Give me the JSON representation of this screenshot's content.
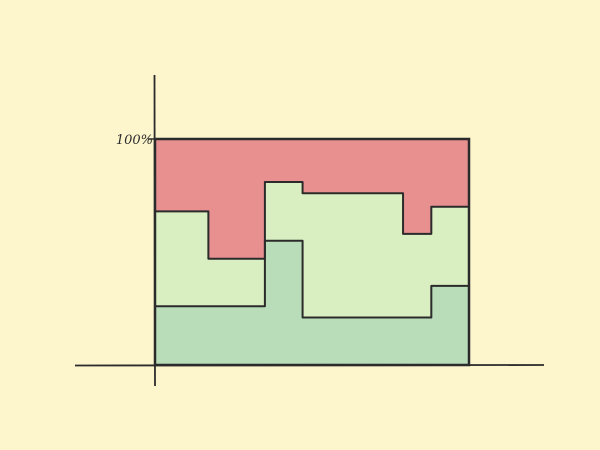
{
  "chart_data": {
    "type": "area",
    "stacked": true,
    "step": true,
    "normalized": "percent",
    "title": "",
    "xlabel": "",
    "ylabel": "",
    "y_tick_label": "100%",
    "ylim": [
      0,
      100
    ],
    "xlim": [
      0,
      100
    ],
    "grid": false,
    "legend": "none",
    "colors": {
      "background": "#fdf5cc",
      "series": [
        "#b8ddb8",
        "#d9efc2",
        "#e89090"
      ],
      "stroke": "#2b2b2b"
    },
    "x_breaks": [
      0,
      17,
      35,
      47,
      79,
      88,
      100
    ],
    "series": [
      {
        "values": [
          26,
          26,
          55,
          21,
          21,
          35,
          53
        ]
      },
      {
        "values": [
          42,
          21,
          26,
          55,
          37,
          35,
          30
        ]
      },
      {
        "values": [
          32,
          53,
          19,
          24,
          42,
          30,
          17
        ]
      }
    ]
  }
}
